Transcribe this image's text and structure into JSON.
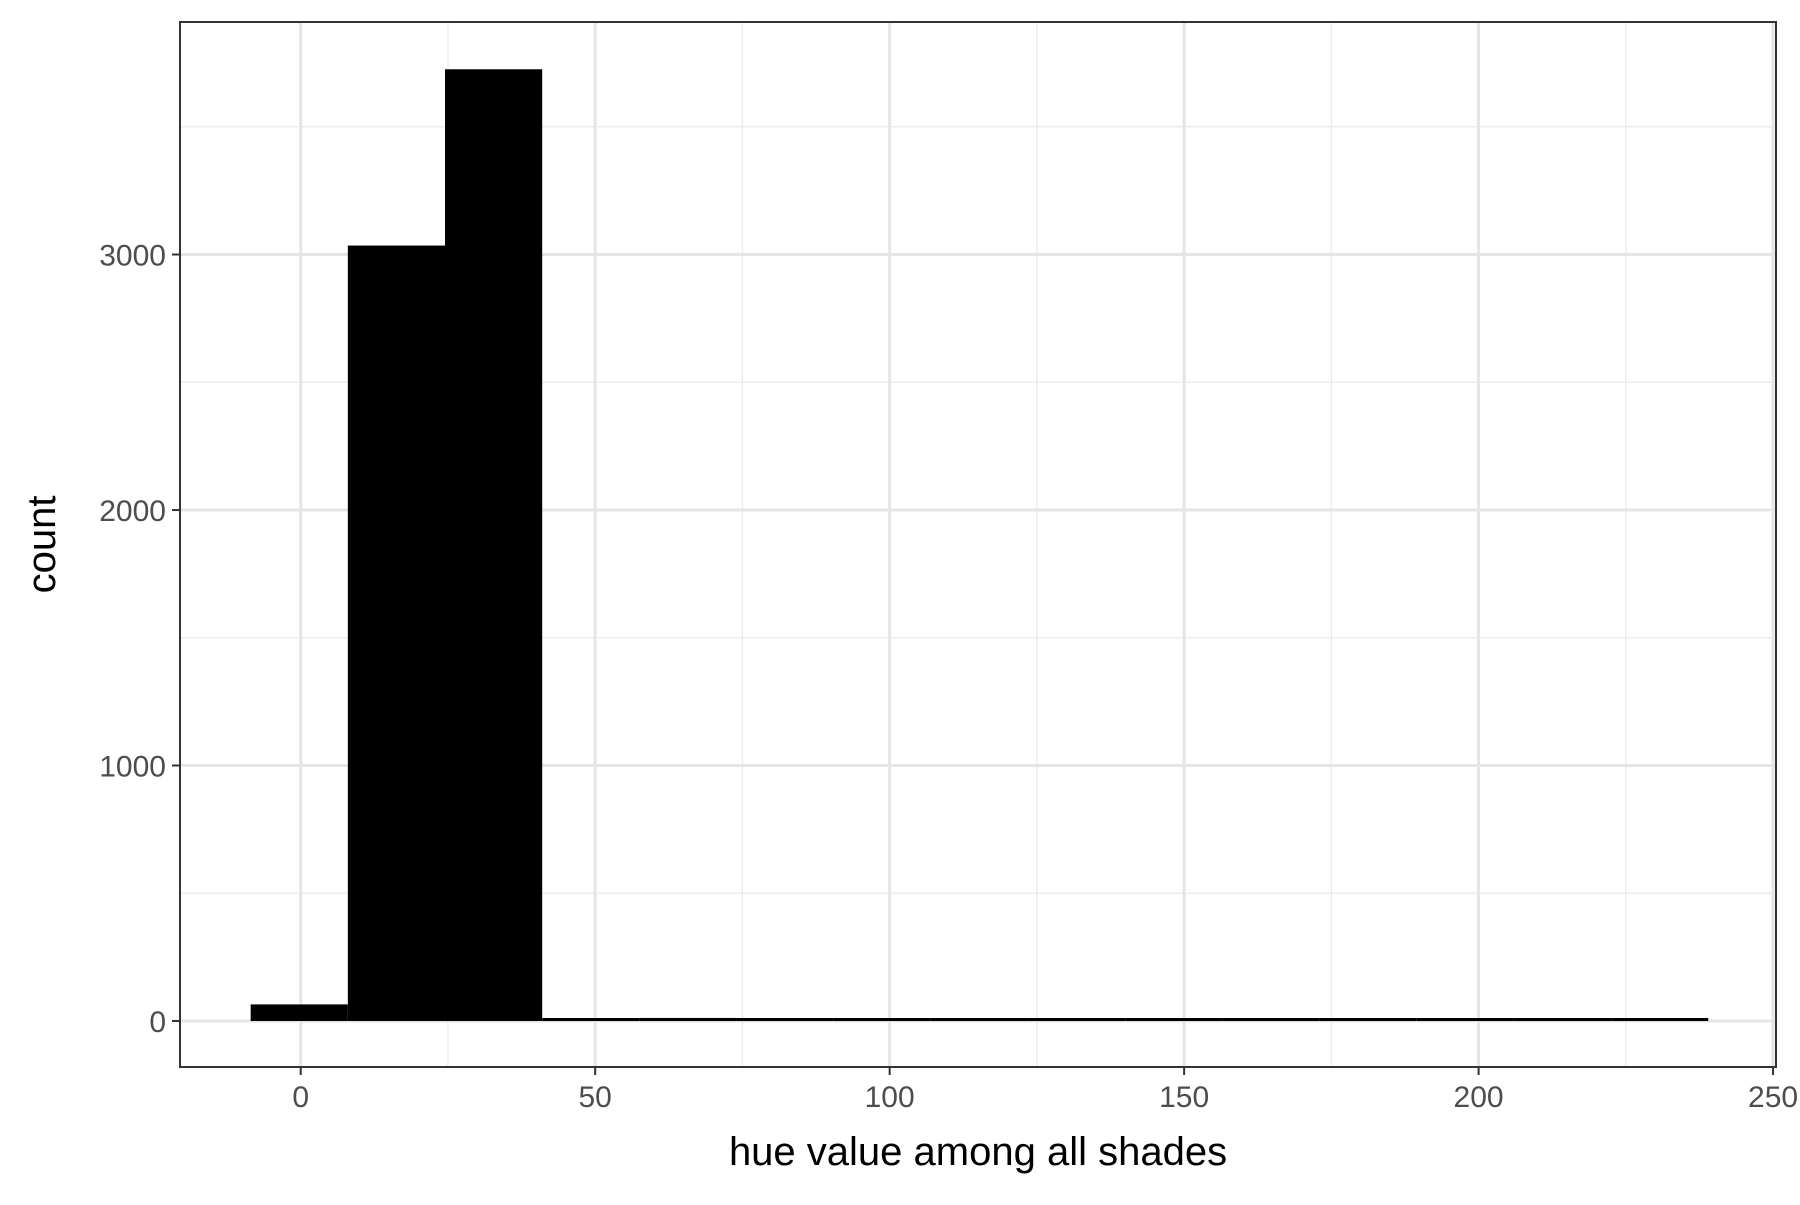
{
  "chart_data": {
    "type": "bar",
    "title": "",
    "xlabel": "hue value among all shades",
    "ylabel": "count",
    "x_ticks": [
      0,
      50,
      100,
      150,
      200,
      250
    ],
    "x_tick_labels": [
      "0",
      "50",
      "100",
      "150",
      "200",
      "250"
    ],
    "y_ticks": [
      0,
      1000,
      2000,
      3000
    ],
    "y_tick_labels": [
      "0",
      "1000",
      "2000",
      "3000"
    ],
    "xlim": [
      -20.5,
      250.5
    ],
    "ylim": [
      -180,
      3910
    ],
    "grid": true,
    "bin_width": 16.5,
    "bins": [
      {
        "x0": -8.5,
        "x1": 8.0,
        "count": 65
      },
      {
        "x0": 8.0,
        "x1": 24.5,
        "count": 3035
      },
      {
        "x0": 24.5,
        "x1": 41.0,
        "count": 3725
      },
      {
        "x0": 41.0,
        "x1": 57.5,
        "count": 5
      },
      {
        "x0": 57.5,
        "x1": 74.0,
        "count": 12
      },
      {
        "x0": 74.0,
        "x1": 90.5,
        "count": 4
      },
      {
        "x0": 90.5,
        "x1": 107.0,
        "count": 3
      },
      {
        "x0": 107.0,
        "x1": 123.5,
        "count": 3
      },
      {
        "x0": 123.5,
        "x1": 140.0,
        "count": 3
      },
      {
        "x0": 140.0,
        "x1": 156.5,
        "count": 3
      },
      {
        "x0": 156.5,
        "x1": 173.0,
        "count": 3
      },
      {
        "x0": 173.0,
        "x1": 189.5,
        "count": 3
      },
      {
        "x0": 189.5,
        "x1": 206.0,
        "count": 3
      },
      {
        "x0": 206.0,
        "x1": 222.5,
        "count": 3
      },
      {
        "x0": 222.5,
        "x1": 239.0,
        "count": 3
      }
    ],
    "bar_color": "#000000",
    "panel_background": "#ffffff",
    "grid_color": "#e5e5e5",
    "border_color": "#333333"
  }
}
